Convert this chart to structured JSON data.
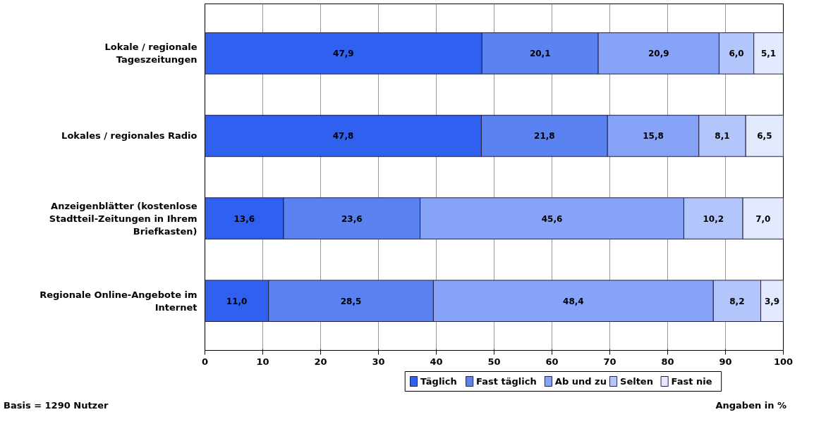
{
  "chart_data": {
    "type": "bar",
    "orientation": "horizontal",
    "stacked": true,
    "categories": [
      "Lokale / regionale Tageszeitungen",
      "Lokales / regionales Radio",
      "Anzeigenblätter (kostenlose Stadtteil-Zeitungen in Ihrem Briefkasten)",
      "Regionale Online-Angebote im Internet"
    ],
    "series": [
      {
        "name": "Täglich",
        "color": "#3060f0",
        "values": [
          47.9,
          47.8,
          13.6,
          11.0
        ],
        "value_labels": [
          "47,9",
          "47,8",
          "13,6",
          "11,0"
        ]
      },
      {
        "name": "Fast täglich",
        "color": "#5a82f0",
        "values": [
          20.1,
          21.8,
          23.6,
          28.5
        ],
        "value_labels": [
          "20,1",
          "21,8",
          "23,6",
          "28,5"
        ]
      },
      {
        "name": "Ab und zu",
        "color": "#86a3f8",
        "values": [
          20.9,
          15.8,
          45.6,
          48.4
        ],
        "value_labels": [
          "20,9",
          "15,8",
          "45,6",
          "48,4"
        ]
      },
      {
        "name": "Selten",
        "color": "#b3c6fb",
        "values": [
          6.0,
          8.1,
          10.2,
          8.2
        ],
        "value_labels": [
          "6,0",
          "8,1",
          "10,2",
          "8,2"
        ]
      },
      {
        "name": "Fast nie",
        "color": "#e2e9fd",
        "values": [
          5.1,
          6.5,
          7.0,
          3.9
        ],
        "value_labels": [
          "5,1",
          "6,5",
          "7,0",
          "3,9"
        ]
      }
    ],
    "xlim": [
      0,
      100
    ],
    "xticks": [
      0,
      10,
      20,
      30,
      40,
      50,
      60,
      70,
      80,
      90,
      100
    ],
    "grid": "x",
    "legend": "bottom",
    "annotations": [
      "Basis = 1290 Nutzer",
      "Angaben in %"
    ]
  }
}
